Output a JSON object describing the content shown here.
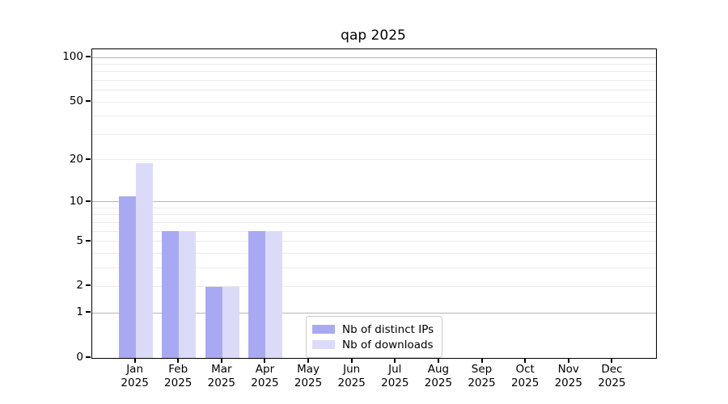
{
  "chart_data": {
    "type": "bar",
    "title": "qap 2025",
    "x_tick_labels": [
      [
        "Jan",
        "2025"
      ],
      [
        "Feb",
        "2025"
      ],
      [
        "Mar",
        "2025"
      ],
      [
        "Apr",
        "2025"
      ],
      [
        "May",
        "2025"
      ],
      [
        "Jun",
        "2025"
      ],
      [
        "Jul",
        "2025"
      ],
      [
        "Aug",
        "2025"
      ],
      [
        "Sep",
        "2025"
      ],
      [
        "Oct",
        "2025"
      ],
      [
        "Nov",
        "2025"
      ],
      [
        "Dec",
        "2025"
      ]
    ],
    "series": [
      {
        "name": "Nb of distinct IPs",
        "color": "#a9a9f3",
        "values": [
          11,
          6,
          2,
          6,
          0,
          0,
          0,
          0,
          0,
          0,
          0,
          0
        ]
      },
      {
        "name": "Nb of downloads",
        "color": "#dbdbf9",
        "values": [
          19,
          6,
          2,
          6,
          0,
          0,
          0,
          0,
          0,
          0,
          0,
          0
        ]
      }
    ],
    "yscale": "log1p",
    "y_ticks": [
      0,
      1,
      2,
      5,
      10,
      20,
      50,
      100
    ],
    "y_major_grid": [
      1,
      10,
      100
    ],
    "y_minor_grid": [
      2,
      3,
      4,
      5,
      6,
      7,
      8,
      9,
      20,
      30,
      40,
      50,
      60,
      70,
      80,
      90
    ],
    "ylim": [
      0,
      113.7
    ],
    "grid": true,
    "legend_position": "bottom-center"
  },
  "colors": {
    "bar_dark": "#a9a9f3",
    "bar_light": "#dbdbf9",
    "major_grid": "#b5b5b5",
    "minor_grid": "#ebebeb",
    "axis": "#000000",
    "legend_border": "#cccccc",
    "background": "#ffffff"
  }
}
